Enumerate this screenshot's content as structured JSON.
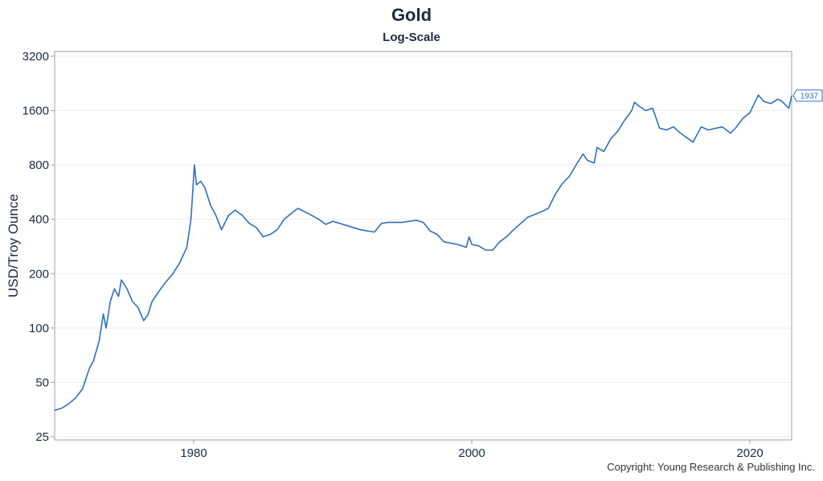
{
  "chart_data": {
    "type": "line",
    "title": "Gold",
    "subtitle": "Log-Scale",
    "ylabel": "USD/Troy Ounce",
    "xlabel": "",
    "yscale": "log",
    "ylim": [
      24,
      3400
    ],
    "xlim": [
      1970.0,
      2023.0
    ],
    "y_ticks": [
      25,
      50,
      100,
      200,
      400,
      800,
      1600,
      3200
    ],
    "x_ticks": [
      1980,
      2000,
      2020
    ],
    "grid": true,
    "line_color": "#2f6fc1",
    "last_value_label": "1937",
    "series": [
      {
        "name": "",
        "x": [
          1970.0,
          1970.5,
          1971.0,
          1971.5,
          1972.0,
          1972.5,
          1972.8,
          1973.2,
          1973.5,
          1973.7,
          1974.0,
          1974.3,
          1974.6,
          1974.8,
          1975.2,
          1975.6,
          1976.0,
          1976.4,
          1976.7,
          1977.0,
          1977.5,
          1978.0,
          1978.5,
          1979.0,
          1979.5,
          1979.8,
          1980.05,
          1980.2,
          1980.5,
          1980.8,
          1981.2,
          1981.6,
          1982.0,
          1982.5,
          1983.0,
          1983.5,
          1984.0,
          1984.5,
          1985.0,
          1985.5,
          1986.0,
          1986.5,
          1987.0,
          1987.5,
          1988.0,
          1988.5,
          1989.0,
          1989.5,
          1990.0,
          1991.0,
          1992.0,
          1993.0,
          1993.5,
          1994.0,
          1995.0,
          1996.0,
          1996.5,
          1997.0,
          1997.5,
          1998.0,
          1999.0,
          1999.6,
          1999.8,
          2000.0,
          2000.5,
          2001.0,
          2001.5,
          2002.0,
          2002.5,
          2003.0,
          2004.0,
          2005.0,
          2005.5,
          2006.0,
          2006.5,
          2007.0,
          2007.5,
          2008.0,
          2008.3,
          2008.8,
          2009.0,
          2009.5,
          2010.0,
          2010.5,
          2011.0,
          2011.5,
          2011.7,
          2012.0,
          2012.5,
          2013.0,
          2013.5,
          2014.0,
          2014.5,
          2015.0,
          2015.9,
          2016.5,
          2017.0,
          2018.0,
          2018.6,
          2019.0,
          2019.5,
          2020.0,
          2020.6,
          2021.0,
          2021.5,
          2022.0,
          2022.3,
          2022.8,
          2023.0
        ],
        "values": [
          35,
          36,
          38,
          41,
          46,
          60,
          66,
          85,
          120,
          100,
          140,
          165,
          150,
          185,
          165,
          140,
          130,
          110,
          118,
          140,
          160,
          180,
          200,
          230,
          280,
          400,
          800,
          620,
          650,
          600,
          480,
          420,
          350,
          420,
          450,
          420,
          380,
          360,
          320,
          330,
          350,
          400,
          430,
          460,
          440,
          420,
          400,
          375,
          390,
          370,
          350,
          340,
          380,
          385,
          385,
          395,
          385,
          345,
          330,
          300,
          290,
          280,
          320,
          290,
          285,
          270,
          270,
          300,
          320,
          350,
          410,
          440,
          460,
          550,
          630,
          690,
          800,
          920,
          850,
          820,
          1000,
          950,
          1120,
          1230,
          1420,
          1600,
          1780,
          1700,
          1600,
          1650,
          1280,
          1250,
          1300,
          1200,
          1070,
          1300,
          1250,
          1300,
          1200,
          1290,
          1450,
          1560,
          1950,
          1800,
          1750,
          1850,
          1800,
          1650,
          1937
        ]
      }
    ]
  },
  "copyright": "Copyright: Young Research & Publishing Inc."
}
